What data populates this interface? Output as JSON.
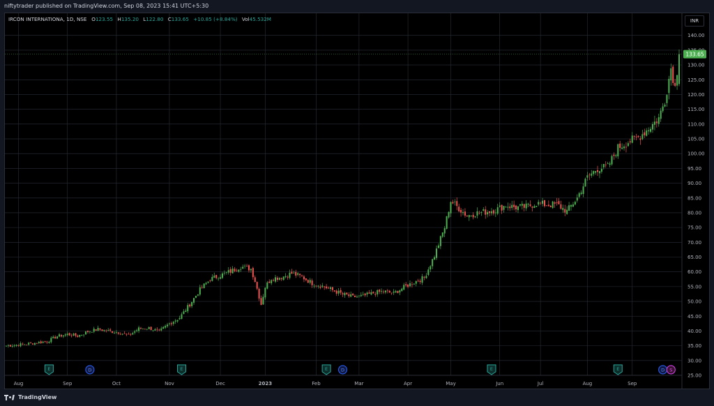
{
  "header": {
    "published": "niftytrader published on TradingView.com, Sep 08, 2023 15:41 UTC+5:30"
  },
  "legend": {
    "symbol": "IRCON INTERNATIONA, 1D, NSE",
    "o_label": "O",
    "o_value": "123.55",
    "h_label": "H",
    "h_value": "135.20",
    "l_label": "L",
    "l_value": "122.80",
    "c_label": "C",
    "c_value": "133.65",
    "change": "+10.85 (+8.84%)",
    "vol_label": "Vol",
    "vol_value": "45.532M"
  },
  "currency": "INR",
  "footer": {
    "brand": "TradingView"
  },
  "colors": {
    "up": "#26a69a",
    "down": "#ef5350",
    "up_bright": "#4caf50",
    "grid": "#2a2e39",
    "bg": "#000000",
    "price_tag": "#4caf50"
  },
  "chart_data": {
    "type": "candlestick",
    "title": "IRCON INTERNATIONA, 1D, NSE",
    "ylim": [
      25,
      143
    ],
    "yticks": [
      25,
      30,
      35,
      40,
      45,
      50,
      55,
      60,
      65,
      70,
      75,
      80,
      85,
      90,
      95,
      100,
      105,
      110,
      115,
      120,
      125,
      130,
      135,
      140
    ],
    "ytick_labels": [
      "25.00",
      "30.00",
      "35.00",
      "40.00",
      "45.00",
      "50.00",
      "55.00",
      "60.00",
      "65.00",
      "70.00",
      "75.00",
      "80.00",
      "85.00",
      "90.00",
      "95.00",
      "100.00",
      "105.00",
      "110.00",
      "115.00",
      "120.00",
      "125.00",
      "130.00",
      "135.00",
      "140.00"
    ],
    "last_price": 133.65,
    "last_price_label": "133.65",
    "months": [
      "Aug",
      "Sep",
      "Oct",
      "Nov",
      "Dec",
      "2023",
      "Feb",
      "Mar",
      "Apr",
      "May",
      "Jun",
      "Jul",
      "Aug",
      "Sep"
    ],
    "close_anchors": [
      [
        0,
        35.0
      ],
      [
        10,
        35.6
      ],
      [
        20,
        36.5
      ],
      [
        25,
        38.2
      ],
      [
        30,
        38.9
      ],
      [
        35,
        38.3
      ],
      [
        40,
        39.8
      ],
      [
        45,
        40.6
      ],
      [
        50,
        40.0
      ],
      [
        55,
        39.6
      ],
      [
        60,
        38.4
      ],
      [
        65,
        40.8
      ],
      [
        70,
        41.0
      ],
      [
        75,
        39.8
      ],
      [
        80,
        42.5
      ],
      [
        85,
        44.5
      ],
      [
        90,
        49.0
      ],
      [
        95,
        54.0
      ],
      [
        100,
        57.5
      ],
      [
        105,
        58.8
      ],
      [
        110,
        60.2
      ],
      [
        115,
        61.8
      ],
      [
        120,
        61.0
      ],
      [
        122,
        57.0
      ],
      [
        125,
        49.0
      ],
      [
        127,
        55.0
      ],
      [
        130,
        57.8
      ],
      [
        135,
        58.2
      ],
      [
        140,
        59.5
      ],
      [
        145,
        58.3
      ],
      [
        150,
        56.2
      ],
      [
        155,
        55.2
      ],
      [
        160,
        53.8
      ],
      [
        165,
        52.4
      ],
      [
        170,
        51.5
      ],
      [
        175,
        51.8
      ],
      [
        180,
        52.8
      ],
      [
        185,
        53.4
      ],
      [
        190,
        52.7
      ],
      [
        195,
        54.8
      ],
      [
        200,
        56.5
      ],
      [
        205,
        58.0
      ],
      [
        210,
        65.5
      ],
      [
        215,
        75.0
      ],
      [
        218,
        84.0
      ],
      [
        222,
        81.5
      ],
      [
        226,
        79.0
      ],
      [
        230,
        79.8
      ],
      [
        235,
        80.3
      ],
      [
        240,
        81.0
      ],
      [
        245,
        82.5
      ],
      [
        250,
        81.8
      ],
      [
        255,
        82.0
      ],
      [
        260,
        83.2
      ],
      [
        265,
        82.7
      ],
      [
        270,
        82.8
      ],
      [
        275,
        80.5
      ],
      [
        280,
        85.0
      ],
      [
        285,
        92.0
      ],
      [
        290,
        95.0
      ],
      [
        295,
        95.5
      ],
      [
        300,
        102.0
      ],
      [
        305,
        104.0
      ],
      [
        310,
        105.5
      ],
      [
        315,
        108.5
      ],
      [
        320,
        112.0
      ],
      [
        323,
        118.0
      ],
      [
        326,
        129.0
      ],
      [
        328,
        122.5
      ],
      [
        330,
        133.65
      ]
    ],
    "events": [
      {
        "type": "E",
        "date_index": 21
      },
      {
        "type": "D",
        "date_index": 41
      },
      {
        "type": "E",
        "date_index": 86
      },
      {
        "type": "E",
        "date_index": 157
      },
      {
        "type": "D",
        "date_index": 165
      },
      {
        "type": "E",
        "date_index": 238
      },
      {
        "type": "E",
        "date_index": 300
      },
      {
        "type": "D",
        "date_index": 322
      },
      {
        "type": "S",
        "date_index": 326
      }
    ],
    "month_start_index": [
      6,
      30,
      54,
      80,
      105,
      127,
      152,
      173,
      197,
      218,
      242,
      262,
      285,
      307
    ]
  }
}
